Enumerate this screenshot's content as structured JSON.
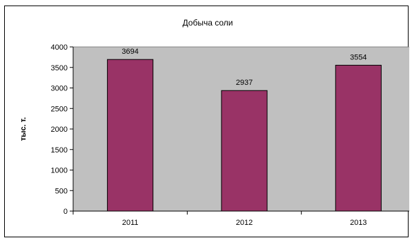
{
  "chart_data": {
    "type": "bar",
    "title": "Добыча соли",
    "xlabel": "",
    "ylabel": "тыс. т.",
    "categories": [
      "2011",
      "2012",
      "2013"
    ],
    "values": [
      3694,
      2937,
      3554
    ],
    "data_labels": [
      "3694",
      "2937",
      "3554"
    ],
    "ylim": [
      0,
      4000
    ],
    "yticks": [
      0,
      500,
      1000,
      1500,
      2000,
      2500,
      3000,
      3500,
      4000
    ],
    "ytick_labels": [
      "0",
      "500",
      "1000",
      "1500",
      "2000",
      "2500",
      "3000",
      "3500",
      "4000"
    ],
    "grid": false,
    "legend": "none",
    "colors": {
      "plot_background": "#c0c0c0",
      "bar_fill": "#993366",
      "bar_stroke": "#000000"
    }
  }
}
